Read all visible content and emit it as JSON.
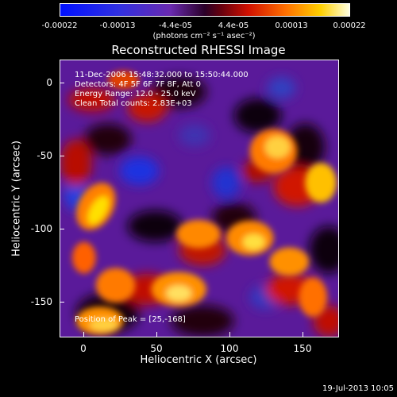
{
  "title": "Reconstructed RHESSI Image",
  "colorbar": {
    "ticks": [
      "-0.00022",
      "-0.00013",
      "-4.4e-05",
      "4.4e-05",
      "0.00013",
      "0.00022"
    ],
    "unit_label": "(photons cm⁻² s⁻¹ asec⁻²)",
    "range": [
      -0.00022,
      0.00022
    ],
    "colormap": "blue-purple-red-yellow-white"
  },
  "annotations": {
    "time": "11-Dec-2006 15:48:32.000 to 15:50:44.000",
    "detectors": "Detectors: 4F 5F 6F 7F 8F, Att 0",
    "energy": "Energy Range: 12.0 - 25.0 keV",
    "clean": "Clean     Total counts: 2.83E+03",
    "position": "Position of Peak = [25,-168]"
  },
  "axes": {
    "xlabel": "Heliocentric X (arcsec)",
    "ylabel": "Heliocentric Y (arcsec)",
    "xticks": [
      "0",
      "50",
      "100",
      "150"
    ],
    "yticks": [
      "0",
      "-50",
      "-100",
      "-150"
    ],
    "xrange": [
      -15,
      175
    ],
    "yrange": [
      -175,
      15
    ]
  },
  "footer": "19-Jul-2013 10:05"
}
